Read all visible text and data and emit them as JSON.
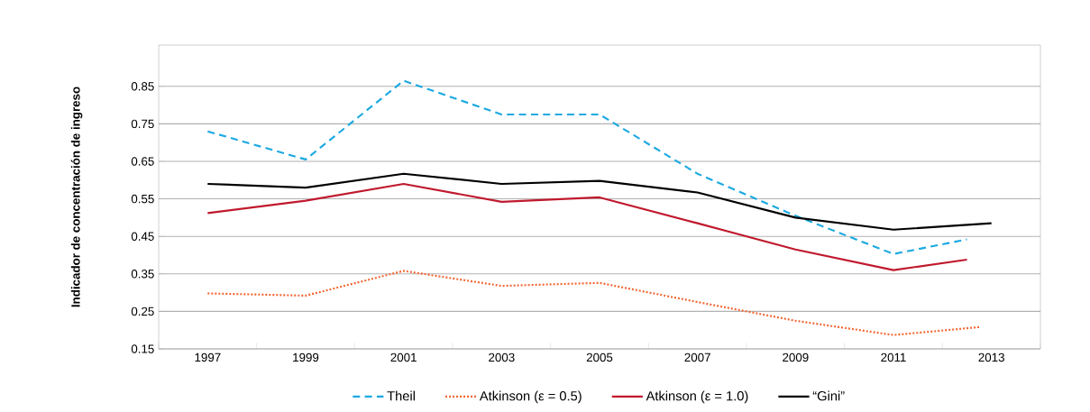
{
  "chart_data": {
    "type": "line",
    "ylabel": "Indicador de concentración de ingreso",
    "xlim": [
      1996,
      2014
    ],
    "ylim": [
      0.15,
      0.96
    ],
    "xticks": [
      1997,
      1999,
      2001,
      2003,
      2005,
      2007,
      2009,
      2011,
      2013,
      {
        "value": 1996,
        "label": null
      },
      {
        "value": 1998,
        "label": null
      },
      {
        "value": 2000,
        "label": null
      },
      {
        "value": 2002,
        "label": null
      },
      {
        "value": 2004,
        "label": null
      },
      {
        "value": 2006,
        "label": null
      },
      {
        "value": 2008,
        "label": null
      },
      {
        "value": 2010,
        "label": null
      },
      {
        "value": 2012,
        "label": null
      },
      {
        "value": 2014,
        "label": null
      }
    ],
    "yticks": [
      0.15,
      0.25,
      0.35,
      0.45,
      0.55,
      0.65,
      0.75,
      0.85
    ],
    "grid": "y",
    "legend": "bottom",
    "marker": "none",
    "series": [
      {
        "name": "Theil",
        "color": "#1ba9e1",
        "line_style": "dashed",
        "x": [
          1997,
          1999,
          2001,
          2003,
          2005,
          2007,
          2009,
          2011,
          2012.5
        ],
        "values": [
          0.73,
          0.655,
          0.865,
          0.775,
          0.775,
          0.617,
          0.505,
          0.403,
          0.442
        ]
      },
      {
        "name": "Atkinson (ε = 0.5)",
        "color": "#f26531",
        "line_style": "dotted",
        "x": [
          1997,
          1999,
          2001,
          2003,
          2005,
          2007,
          2009,
          2011,
          2012.75
        ],
        "values": [
          0.298,
          0.292,
          0.358,
          0.318,
          0.326,
          0.275,
          0.225,
          0.187,
          0.208
        ]
      },
      {
        "name": "Atkinson (ε = 1.0)",
        "color": "#c0192d",
        "line_style": "solid",
        "x": [
          1997,
          1999,
          2001,
          2003,
          2005,
          2007,
          2009,
          2011,
          2012.5
        ],
        "values": [
          0.512,
          0.545,
          0.59,
          0.542,
          0.554,
          0.485,
          0.415,
          0.36,
          0.388
        ]
      },
      {
        "name": "“Gini”",
        "color": "#000000",
        "line_style": "solid",
        "x": [
          1997,
          1999,
          2001,
          2003,
          2005,
          2007,
          2009,
          2011,
          2013
        ],
        "values": [
          0.59,
          0.58,
          0.617,
          0.59,
          0.598,
          0.567,
          0.5,
          0.468,
          0.485
        ]
      }
    ]
  }
}
